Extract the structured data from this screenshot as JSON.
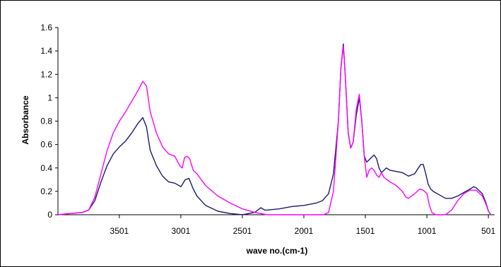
{
  "chart_data": {
    "type": "line",
    "title": "",
    "xlabel": "wave no.(cm-1)",
    "ylabel": "Absorbance",
    "xlim": [
      4000,
      450
    ],
    "ylim": [
      0,
      1.6
    ],
    "x_reversed": true,
    "x_ticks": [
      "3501",
      "3001",
      "2501",
      "2001",
      "1501",
      "1001",
      "501"
    ],
    "y_ticks": [
      "0",
      "0.2",
      "0.4",
      "0.6",
      "0.8",
      "1",
      "1.2",
      "1.4",
      "1.6"
    ],
    "grid": false,
    "legend": "none",
    "series": [
      {
        "color": "#1a1a6e",
        "points": [
          [
            4000,
            0.0
          ],
          [
            3900,
            0.01
          ],
          [
            3800,
            0.02
          ],
          [
            3750,
            0.04
          ],
          [
            3700,
            0.12
          ],
          [
            3650,
            0.28
          ],
          [
            3600,
            0.42
          ],
          [
            3550,
            0.52
          ],
          [
            3500,
            0.58
          ],
          [
            3450,
            0.63
          ],
          [
            3400,
            0.7
          ],
          [
            3350,
            0.78
          ],
          [
            3310,
            0.83
          ],
          [
            3280,
            0.75
          ],
          [
            3250,
            0.55
          ],
          [
            3200,
            0.42
          ],
          [
            3150,
            0.33
          ],
          [
            3100,
            0.28
          ],
          [
            3050,
            0.27
          ],
          [
            3000,
            0.24
          ],
          [
            2965,
            0.3
          ],
          [
            2935,
            0.31
          ],
          [
            2900,
            0.22
          ],
          [
            2870,
            0.16
          ],
          [
            2800,
            0.08
          ],
          [
            2700,
            0.03
          ],
          [
            2600,
            0.01
          ],
          [
            2500,
            0.0
          ],
          [
            2400,
            0.02
          ],
          [
            2350,
            0.06
          ],
          [
            2320,
            0.04
          ],
          [
            2300,
            0.04
          ],
          [
            2200,
            0.05
          ],
          [
            2100,
            0.07
          ],
          [
            2000,
            0.08
          ],
          [
            1900,
            0.1
          ],
          [
            1850,
            0.12
          ],
          [
            1800,
            0.18
          ],
          [
            1760,
            0.35
          ],
          [
            1720,
            0.8
          ],
          [
            1700,
            1.25
          ],
          [
            1680,
            1.46
          ],
          [
            1665,
            1.2
          ],
          [
            1640,
            0.7
          ],
          [
            1620,
            0.57
          ],
          [
            1600,
            0.62
          ],
          [
            1575,
            0.85
          ],
          [
            1550,
            1.0
          ],
          [
            1530,
            0.8
          ],
          [
            1510,
            0.5
          ],
          [
            1490,
            0.45
          ],
          [
            1470,
            0.47
          ],
          [
            1450,
            0.49
          ],
          [
            1430,
            0.51
          ],
          [
            1410,
            0.48
          ],
          [
            1390,
            0.4
          ],
          [
            1370,
            0.36
          ],
          [
            1350,
            0.38
          ],
          [
            1330,
            0.4
          ],
          [
            1300,
            0.38
          ],
          [
            1250,
            0.37
          ],
          [
            1200,
            0.36
          ],
          [
            1150,
            0.33
          ],
          [
            1100,
            0.35
          ],
          [
            1070,
            0.4
          ],
          [
            1050,
            0.43
          ],
          [
            1030,
            0.43
          ],
          [
            1010,
            0.35
          ],
          [
            990,
            0.26
          ],
          [
            970,
            0.22
          ],
          [
            950,
            0.2
          ],
          [
            900,
            0.17
          ],
          [
            850,
            0.14
          ],
          [
            800,
            0.14
          ],
          [
            750,
            0.16
          ],
          [
            700,
            0.19
          ],
          [
            650,
            0.22
          ],
          [
            620,
            0.24
          ],
          [
            600,
            0.23
          ],
          [
            550,
            0.18
          ],
          [
            520,
            0.1
          ],
          [
            500,
            0.03
          ],
          [
            480,
            0.0
          ]
        ]
      },
      {
        "color": "#ff00ff",
        "points": [
          [
            4000,
            0.0
          ],
          [
            3900,
            0.01
          ],
          [
            3800,
            0.02
          ],
          [
            3750,
            0.04
          ],
          [
            3700,
            0.15
          ],
          [
            3650,
            0.35
          ],
          [
            3600,
            0.55
          ],
          [
            3550,
            0.7
          ],
          [
            3500,
            0.8
          ],
          [
            3450,
            0.88
          ],
          [
            3400,
            0.97
          ],
          [
            3350,
            1.06
          ],
          [
            3310,
            1.14
          ],
          [
            3280,
            1.1
          ],
          [
            3250,
            0.88
          ],
          [
            3200,
            0.7
          ],
          [
            3150,
            0.58
          ],
          [
            3100,
            0.52
          ],
          [
            3050,
            0.5
          ],
          [
            3010,
            0.42
          ],
          [
            2990,
            0.4
          ],
          [
            2970,
            0.49
          ],
          [
            2950,
            0.5
          ],
          [
            2930,
            0.48
          ],
          [
            2900,
            0.38
          ],
          [
            2870,
            0.35
          ],
          [
            2800,
            0.25
          ],
          [
            2700,
            0.16
          ],
          [
            2600,
            0.1
          ],
          [
            2500,
            0.05
          ],
          [
            2400,
            0.02
          ],
          [
            2300,
            0.0
          ],
          [
            1840,
            0.0
          ],
          [
            1800,
            0.02
          ],
          [
            1760,
            0.2
          ],
          [
            1720,
            0.8
          ],
          [
            1700,
            1.25
          ],
          [
            1680,
            1.44
          ],
          [
            1665,
            1.2
          ],
          [
            1640,
            0.7
          ],
          [
            1620,
            0.57
          ],
          [
            1600,
            0.62
          ],
          [
            1575,
            0.9
          ],
          [
            1550,
            1.03
          ],
          [
            1530,
            0.8
          ],
          [
            1510,
            0.5
          ],
          [
            1490,
            0.32
          ],
          [
            1470,
            0.38
          ],
          [
            1450,
            0.4
          ],
          [
            1430,
            0.38
          ],
          [
            1410,
            0.34
          ],
          [
            1390,
            0.32
          ],
          [
            1370,
            0.36
          ],
          [
            1350,
            0.32
          ],
          [
            1300,
            0.28
          ],
          [
            1250,
            0.25
          ],
          [
            1200,
            0.2
          ],
          [
            1170,
            0.15
          ],
          [
            1150,
            0.14
          ],
          [
            1100,
            0.18
          ],
          [
            1060,
            0.22
          ],
          [
            1030,
            0.21
          ],
          [
            1000,
            0.18
          ],
          [
            980,
            0.08
          ],
          [
            960,
            0.02
          ],
          [
            930,
            0.0
          ],
          [
            850,
            0.0
          ],
          [
            800,
            0.04
          ],
          [
            750,
            0.12
          ],
          [
            700,
            0.18
          ],
          [
            650,
            0.21
          ],
          [
            600,
            0.21
          ],
          [
            550,
            0.16
          ],
          [
            520,
            0.09
          ],
          [
            500,
            0.03
          ],
          [
            480,
            0.0
          ]
        ]
      }
    ]
  }
}
